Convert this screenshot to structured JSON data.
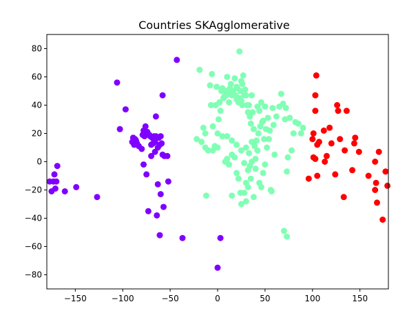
{
  "chart_data": {
    "type": "scatter",
    "title": "Countries SKAgglomerative",
    "xlabel": "",
    "ylabel": "",
    "xlim": [
      -180,
      180
    ],
    "ylim": [
      -90,
      90
    ],
    "xticks": [
      -150,
      -100,
      -50,
      0,
      50,
      100,
      150
    ],
    "yticks": [
      -80,
      -60,
      -40,
      -20,
      0,
      20,
      40,
      60,
      80
    ],
    "grid": false,
    "legend": "none",
    "colors": {
      "purple": "#8000ff",
      "green": "#80ffb4",
      "red": "#ff0000"
    },
    "series": [
      {
        "color": "purple",
        "points": [
          [
            -177,
            -14
          ],
          [
            -175,
            -21
          ],
          [
            -173,
            -14
          ],
          [
            -172,
            -9
          ],
          [
            -171,
            -19
          ],
          [
            -170,
            -14
          ],
          [
            -169,
            -3
          ],
          [
            -161,
            -21
          ],
          [
            -149,
            -18
          ],
          [
            -127,
            -25
          ],
          [
            -106,
            56
          ],
          [
            -103,
            23
          ],
          [
            -97,
            37
          ],
          [
            -90,
            14
          ],
          [
            -89,
            17
          ],
          [
            -88,
            12
          ],
          [
            -87,
            16
          ],
          [
            -86,
            15
          ],
          [
            -85,
            13
          ],
          [
            -83,
            11
          ],
          [
            -80,
            9
          ],
          [
            -79,
            19
          ],
          [
            -78,
            22
          ],
          [
            -77,
            18
          ],
          [
            -76,
            25
          ],
          [
            -75,
            20
          ],
          [
            -74,
            21
          ],
          [
            -72,
            19
          ],
          [
            -71,
            18
          ],
          [
            -70,
            12
          ],
          [
            -69,
            17
          ],
          [
            -68,
            13
          ],
          [
            -67,
            18
          ],
          [
            -66,
            14
          ],
          [
            -65,
            18
          ],
          [
            -64,
            17
          ],
          [
            -63,
            10
          ],
          [
            -62,
            17
          ],
          [
            -61,
            12
          ],
          [
            -60,
            18
          ],
          [
            -59,
            13
          ],
          [
            -58,
            5
          ],
          [
            -56,
            4
          ],
          [
            -53,
            4
          ],
          [
            -78,
            -2
          ],
          [
            -75,
            -9
          ],
          [
            -70,
            4
          ],
          [
            -66,
            7
          ],
          [
            -65,
            32
          ],
          [
            -63,
            -16
          ],
          [
            -73,
            -35
          ],
          [
            -60,
            -23
          ],
          [
            -57,
            -32
          ],
          [
            -52,
            -14
          ],
          [
            -58,
            47
          ],
          [
            -61,
            -52
          ],
          [
            -64,
            -38
          ],
          [
            -43,
            72
          ],
          [
            -37,
            -54
          ],
          [
            3,
            -54
          ],
          [
            0,
            -75
          ]
        ]
      },
      {
        "color": "green",
        "points": [
          [
            -19,
            65
          ],
          [
            -22,
            16
          ],
          [
            -17,
            14
          ],
          [
            -15,
            24
          ],
          [
            -13,
            20
          ],
          [
            -13,
            10
          ],
          [
            -12,
            -24
          ],
          [
            -10,
            8
          ],
          [
            -8,
            54
          ],
          [
            -7,
            40
          ],
          [
            -6,
            62
          ],
          [
            -5,
            8
          ],
          [
            -3,
            11
          ],
          [
            -2,
            40
          ],
          [
            -1,
            53
          ],
          [
            0,
            10
          ],
          [
            1,
            30
          ],
          [
            2,
            42
          ],
          [
            3,
            36
          ],
          [
            4,
            50
          ],
          [
            5,
            52
          ],
          [
            6,
            45
          ],
          [
            7,
            46
          ],
          [
            8,
            50
          ],
          [
            9,
            47
          ],
          [
            10,
            50
          ],
          [
            11,
            49
          ],
          [
            12,
            42
          ],
          [
            13,
            52
          ],
          [
            14,
            48
          ],
          [
            15,
            47
          ],
          [
            16,
            50
          ],
          [
            17,
            48
          ],
          [
            18,
            59
          ],
          [
            19,
            47
          ],
          [
            20,
            44
          ],
          [
            21,
            52
          ],
          [
            22,
            42
          ],
          [
            23,
            45
          ],
          [
            24,
            50
          ],
          [
            25,
            57
          ],
          [
            25,
            43
          ],
          [
            26,
            55
          ],
          [
            26,
            40
          ],
          [
            27,
            61
          ],
          [
            28,
            47
          ],
          [
            29,
            51
          ],
          [
            30,
            47
          ],
          [
            31,
            40
          ],
          [
            32,
            35
          ],
          [
            33,
            40
          ],
          [
            34,
            32
          ],
          [
            35,
            27
          ],
          [
            36,
            47
          ],
          [
            37,
            35
          ],
          [
            38,
            23
          ],
          [
            40,
            -5
          ],
          [
            41,
            15
          ],
          [
            42,
            39
          ],
          [
            43,
            20
          ],
          [
            44,
            36
          ],
          [
            45,
            25
          ],
          [
            46,
            42
          ],
          [
            47,
            28
          ],
          [
            48,
            29
          ],
          [
            49,
            16
          ],
          [
            50,
            39
          ],
          [
            51,
            23
          ],
          [
            52,
            10
          ],
          [
            53,
            31
          ],
          [
            54,
            16
          ],
          [
            55,
            22
          ],
          [
            56,
            -20
          ],
          [
            57,
            -21
          ],
          [
            58,
            38
          ],
          [
            59,
            26
          ],
          [
            60,
            5
          ],
          [
            62,
            32
          ],
          [
            65,
            39
          ],
          [
            67,
            48
          ],
          [
            69,
            41
          ],
          [
            70,
            -49
          ],
          [
            71,
            30
          ],
          [
            72,
            38
          ],
          [
            73,
            -7
          ],
          [
            73,
            -53
          ],
          [
            74,
            3
          ],
          [
            76,
            31
          ],
          [
            78,
            8
          ],
          [
            80,
            20
          ],
          [
            82,
            28
          ],
          [
            85,
            27
          ],
          [
            88,
            20
          ],
          [
            90,
            24
          ],
          [
            10,
            2
          ],
          [
            8,
            0
          ],
          [
            12,
            -2
          ],
          [
            15,
            5
          ],
          [
            18,
            3
          ],
          [
            20,
            -8
          ],
          [
            22,
            -12
          ],
          [
            25,
            -30
          ],
          [
            28,
            -22
          ],
          [
            30,
            -15
          ],
          [
            32,
            -18
          ],
          [
            35,
            -12
          ],
          [
            38,
            -25
          ],
          [
            30,
            -28
          ],
          [
            24,
            -22
          ],
          [
            28,
            -1
          ],
          [
            32,
            -6
          ],
          [
            34,
            -3
          ],
          [
            36,
            0
          ],
          [
            40,
            2
          ],
          [
            44,
            -15
          ],
          [
            46,
            -18
          ],
          [
            48,
            -8
          ],
          [
            50,
            -2
          ],
          [
            15,
            -24
          ],
          [
            -5,
            25
          ],
          [
            0,
            20
          ],
          [
            5,
            18
          ],
          [
            10,
            18
          ],
          [
            15,
            15
          ],
          [
            20,
            12
          ],
          [
            25,
            8
          ],
          [
            30,
            10
          ],
          [
            33,
            6
          ],
          [
            36,
            14
          ],
          [
            39,
            11
          ],
          [
            42,
            8
          ],
          [
            23,
            78
          ],
          [
            20,
            53
          ],
          [
            14,
            55
          ],
          [
            10,
            60
          ]
        ]
      },
      {
        "color": "red",
        "points": [
          [
            96,
            -12
          ],
          [
            100,
            16
          ],
          [
            101,
            3
          ],
          [
            103,
            2
          ],
          [
            103,
            47
          ],
          [
            103,
            36
          ],
          [
            104,
            61
          ],
          [
            105,
            12
          ],
          [
            105,
            -10
          ],
          [
            107,
            14
          ],
          [
            112,
            22
          ],
          [
            113,
            0
          ],
          [
            115,
            4
          ],
          [
            118,
            24
          ],
          [
            120,
            13
          ],
          [
            124,
            -9
          ],
          [
            126,
            40
          ],
          [
            127,
            36
          ],
          [
            129,
            16
          ],
          [
            133,
            -25
          ],
          [
            134,
            8
          ],
          [
            136,
            36
          ],
          [
            142,
            -6
          ],
          [
            144,
            13
          ],
          [
            145,
            17
          ],
          [
            149,
            7
          ],
          [
            159,
            -10
          ],
          [
            166,
            -20
          ],
          [
            167,
            -15
          ],
          [
            168,
            -29
          ],
          [
            166,
            0
          ],
          [
            170,
            7
          ],
          [
            174,
            -41
          ],
          [
            177,
            -7
          ],
          [
            179,
            -17
          ],
          [
            101,
            20
          ]
        ]
      }
    ]
  }
}
